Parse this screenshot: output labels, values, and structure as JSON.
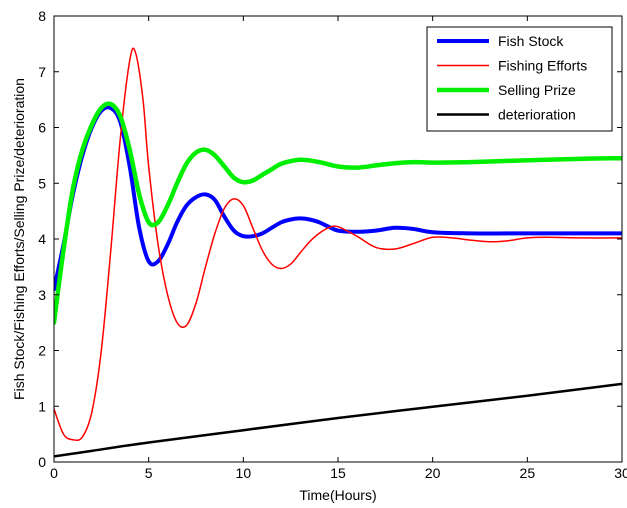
{
  "chart_data": {
    "type": "line",
    "xlabel": "Time(Hours)",
    "ylabel": "Fish Stock/Fishing Efforts/Selling Prize/deterioration",
    "xlim": [
      0,
      30
    ],
    "ylim": [
      0,
      8
    ],
    "xticks": [
      0,
      5,
      10,
      15,
      20,
      25,
      30
    ],
    "yticks": [
      0,
      1,
      2,
      3,
      4,
      5,
      6,
      7,
      8
    ],
    "grid": false,
    "legend_position": "top-right",
    "series": [
      {
        "name": "Fish Stock",
        "color": "#0000ff",
        "width": 4,
        "x": [
          0,
          0.5,
          1,
          1.5,
          2,
          2.5,
          3,
          3.5,
          4,
          4.5,
          5,
          5.5,
          6,
          6.5,
          7,
          7.5,
          8,
          8.5,
          9,
          9.5,
          10,
          10.5,
          11,
          11.5,
          12,
          12.5,
          13,
          13.5,
          14,
          14.5,
          15,
          16,
          17,
          18,
          19,
          20,
          22,
          24,
          26,
          28,
          30
        ],
        "y": [
          3.1,
          3.9,
          4.8,
          5.5,
          6.0,
          6.3,
          6.35,
          6.1,
          5.3,
          4.2,
          3.6,
          3.6,
          3.9,
          4.3,
          4.6,
          4.75,
          4.8,
          4.7,
          4.4,
          4.15,
          4.05,
          4.05,
          4.1,
          4.2,
          4.3,
          4.35,
          4.37,
          4.35,
          4.3,
          4.22,
          4.15,
          4.13,
          4.15,
          4.2,
          4.18,
          4.12,
          4.1,
          4.1,
          4.1,
          4.1,
          4.1
        ]
      },
      {
        "name": "Fishing Efforts",
        "color": "#ff0000",
        "width": 1.5,
        "x": [
          0,
          0.5,
          1,
          1.5,
          2,
          2.5,
          3,
          3.5,
          4,
          4.3,
          4.7,
          5,
          5.5,
          6,
          6.5,
          7,
          7.5,
          8,
          8.5,
          9,
          9.5,
          10,
          10.5,
          11,
          11.5,
          12,
          12.5,
          13,
          13.5,
          14,
          14.5,
          15,
          16,
          17,
          18,
          19,
          20,
          21,
          22,
          23,
          24,
          25,
          26,
          28,
          30
        ],
        "y": [
          0.95,
          0.5,
          0.4,
          0.45,
          0.9,
          2.0,
          3.8,
          5.8,
          7.2,
          7.35,
          6.5,
          5.3,
          3.9,
          3.0,
          2.5,
          2.45,
          2.85,
          3.5,
          4.1,
          4.55,
          4.72,
          4.6,
          4.2,
          3.8,
          3.55,
          3.47,
          3.55,
          3.75,
          3.95,
          4.1,
          4.2,
          4.22,
          4.05,
          3.85,
          3.82,
          3.92,
          4.03,
          4.02,
          3.98,
          3.95,
          3.97,
          4.02,
          4.03,
          4.02,
          4.02
        ]
      },
      {
        "name": "Selling Prize",
        "color": "#00ee00",
        "width": 4.5,
        "x": [
          0,
          0.5,
          1,
          1.5,
          2,
          2.5,
          3,
          3.5,
          4,
          4.5,
          5,
          5.5,
          6,
          6.5,
          7,
          7.5,
          8,
          8.5,
          9,
          9.5,
          10,
          10.5,
          11,
          11.5,
          12,
          13,
          14,
          15,
          16,
          17,
          18,
          19,
          20,
          22,
          24,
          26,
          28,
          30
        ],
        "y": [
          2.5,
          3.8,
          4.9,
          5.6,
          6.05,
          6.35,
          6.42,
          6.2,
          5.6,
          4.8,
          4.3,
          4.3,
          4.6,
          5.0,
          5.35,
          5.55,
          5.6,
          5.5,
          5.3,
          5.1,
          5.02,
          5.05,
          5.15,
          5.25,
          5.35,
          5.42,
          5.38,
          5.3,
          5.28,
          5.32,
          5.36,
          5.38,
          5.37,
          5.38,
          5.4,
          5.42,
          5.44,
          5.45
        ]
      },
      {
        "name": "deterioration",
        "color": "#000000",
        "width": 2.5,
        "x": [
          0,
          2,
          5,
          10,
          15,
          20,
          25,
          30
        ],
        "y": [
          0.1,
          0.2,
          0.35,
          0.57,
          0.79,
          0.99,
          1.19,
          1.4
        ]
      }
    ]
  }
}
